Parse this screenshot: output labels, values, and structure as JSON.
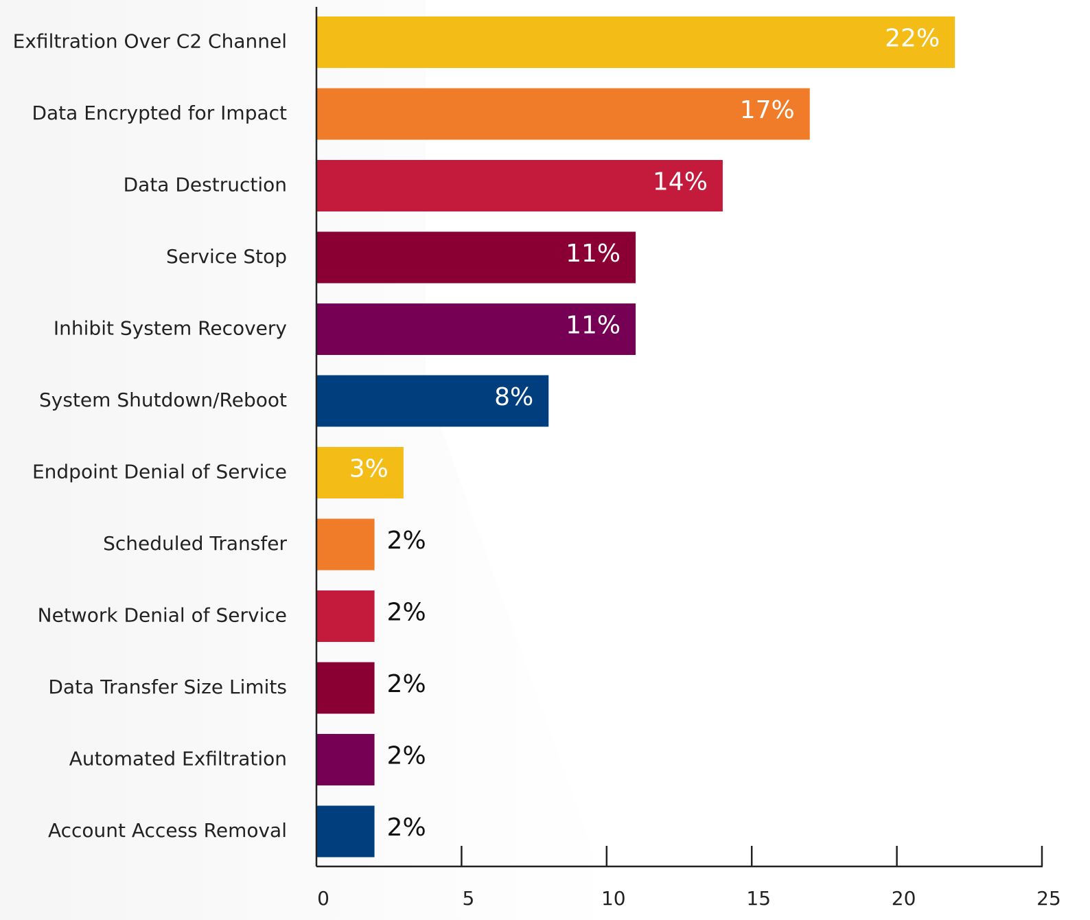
{
  "chart_data": {
    "type": "barh",
    "categories": [
      "Exfiltration Over C2 Channel",
      "Data Encrypted for Impact",
      "Data Destruction",
      "Service Stop",
      "Inhibit System Recovery",
      "System Shutdown/Reboot",
      "Endpoint Denial of Service",
      "Scheduled Transfer",
      "Network Denial of Service",
      "Data Transfer Size Limits",
      "Automated Exfiltration",
      "Account Access Removal"
    ],
    "values": [
      22,
      17,
      14,
      11,
      11,
      8,
      3,
      2,
      2,
      2,
      2,
      2
    ],
    "value_labels": [
      "22%",
      "17%",
      "14%",
      "11%",
      "11%",
      "8%",
      "3%",
      "2%",
      "2%",
      "2%",
      "2%",
      "2%"
    ],
    "colors": [
      "#f3bc17",
      "#f07b28",
      "#c41a3b",
      "#8a0033",
      "#750054",
      "#003e7e",
      "#f3bc17",
      "#f07b28",
      "#c41a3b",
      "#8a0033",
      "#750054",
      "#003e7e"
    ],
    "xlim": [
      0,
      25
    ],
    "xticks": [
      0,
      5,
      10,
      15,
      20,
      25
    ]
  }
}
